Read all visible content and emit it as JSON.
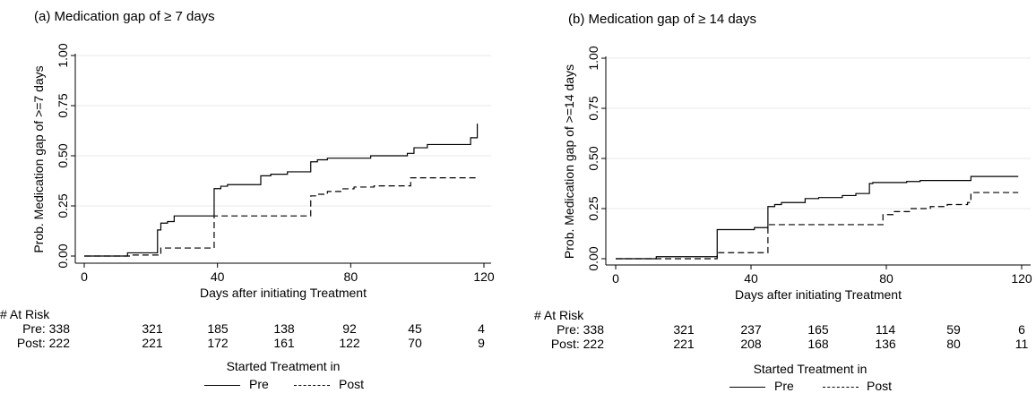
{
  "chart_data": [
    {
      "type": "line",
      "panel_title": "(a) Medication gap of ≥ 7 days",
      "xlabel": "Days after initiating Treatment",
      "ylabel": "Prob. Medication gap of >=7 days",
      "xlim": [
        0,
        120
      ],
      "ylim": [
        0,
        1
      ],
      "xticks": [
        "0",
        "40",
        "80",
        "120"
      ],
      "yticks": [
        "0.00",
        "0.25",
        "0.50",
        "0.75",
        "1.00"
      ],
      "grid": true,
      "series": [
        {
          "name": "Pre",
          "style": "solid",
          "x": [
            0,
            13,
            21,
            22,
            23,
            25,
            27,
            38,
            39,
            41,
            43,
            47,
            53,
            54,
            56,
            57,
            61,
            63,
            67,
            68,
            70,
            73,
            75,
            80,
            86,
            96,
            97,
            99,
            103,
            112,
            116,
            118,
            118
          ],
          "y": [
            0,
            0.016,
            0.016,
            0.13,
            0.164,
            0.172,
            0.2,
            0.2,
            0.336,
            0.348,
            0.356,
            0.356,
            0.4,
            0.4,
            0.408,
            0.408,
            0.42,
            0.42,
            0.42,
            0.47,
            0.48,
            0.488,
            0.488,
            0.488,
            0.5,
            0.5,
            0.512,
            0.54,
            0.556,
            0.556,
            0.59,
            0.59,
            0.66
          ]
        },
        {
          "name": "Post",
          "style": "dashed",
          "x": [
            0,
            14,
            22,
            23,
            38,
            39,
            48,
            67,
            68,
            70,
            73,
            77,
            81,
            87,
            96,
            98,
            118
          ],
          "y": [
            0,
            0.005,
            0.005,
            0.04,
            0.04,
            0.2,
            0.2,
            0.2,
            0.3,
            0.308,
            0.322,
            0.335,
            0.344,
            0.35,
            0.35,
            0.39,
            0.39
          ]
        }
      ],
      "at_risk": {
        "title": "# At Risk",
        "rows": [
          {
            "label": "Pre: 338",
            "values": [
              "321",
              "185",
              "138",
              "92",
              "45",
              "4"
            ]
          },
          {
            "label": "Post: 222",
            "values": [
              "221",
              "172",
              "161",
              "122",
              "70",
              "9"
            ]
          }
        ]
      },
      "legend": {
        "title": "Started Treatment in",
        "placement": "bottom",
        "items": [
          "Pre",
          "Post"
        ]
      }
    },
    {
      "type": "line",
      "panel_title": "(b) Medication gap of ≥ 14 days",
      "xlabel": "Days after initiating Treatment",
      "ylabel": "Prob. Medication gap of >=14 days",
      "xlim": [
        0,
        120
      ],
      "ylim": [
        0,
        1
      ],
      "xticks": [
        "0",
        "40",
        "80",
        "120"
      ],
      "yticks": [
        "0.00",
        "0.25",
        "0.50",
        "0.75",
        "1.00"
      ],
      "grid": true,
      "series": [
        {
          "name": "Pre",
          "style": "solid",
          "x": [
            0,
            12,
            29,
            30,
            39,
            41,
            44,
            45,
            47,
            49,
            56,
            60,
            67,
            71,
            75,
            76,
            86,
            90,
            104,
            105,
            119
          ],
          "y": [
            0,
            0.01,
            0.01,
            0.145,
            0.145,
            0.155,
            0.155,
            0.26,
            0.27,
            0.28,
            0.3,
            0.305,
            0.315,
            0.325,
            0.375,
            0.38,
            0.385,
            0.39,
            0.39,
            0.41,
            0.41
          ]
        },
        {
          "name": "Post",
          "style": "dashed",
          "x": [
            0,
            29,
            30,
            44,
            45,
            75,
            79,
            82,
            87,
            93,
            98,
            104,
            105,
            119
          ],
          "y": [
            0,
            0,
            0.03,
            0.03,
            0.17,
            0.17,
            0.22,
            0.235,
            0.25,
            0.26,
            0.27,
            0.28,
            0.33,
            0.33
          ]
        }
      ],
      "at_risk": {
        "title": "# At Risk",
        "rows": [
          {
            "label": "Pre: 338",
            "values": [
              "321",
              "237",
              "165",
              "114",
              "59",
              "6"
            ]
          },
          {
            "label": "Post: 222",
            "values": [
              "221",
              "208",
              "168",
              "136",
              "80",
              "11"
            ]
          }
        ]
      },
      "legend": {
        "title": "Started Treatment in",
        "placement": "bottom",
        "items": [
          "Pre",
          "Post"
        ]
      }
    }
  ]
}
